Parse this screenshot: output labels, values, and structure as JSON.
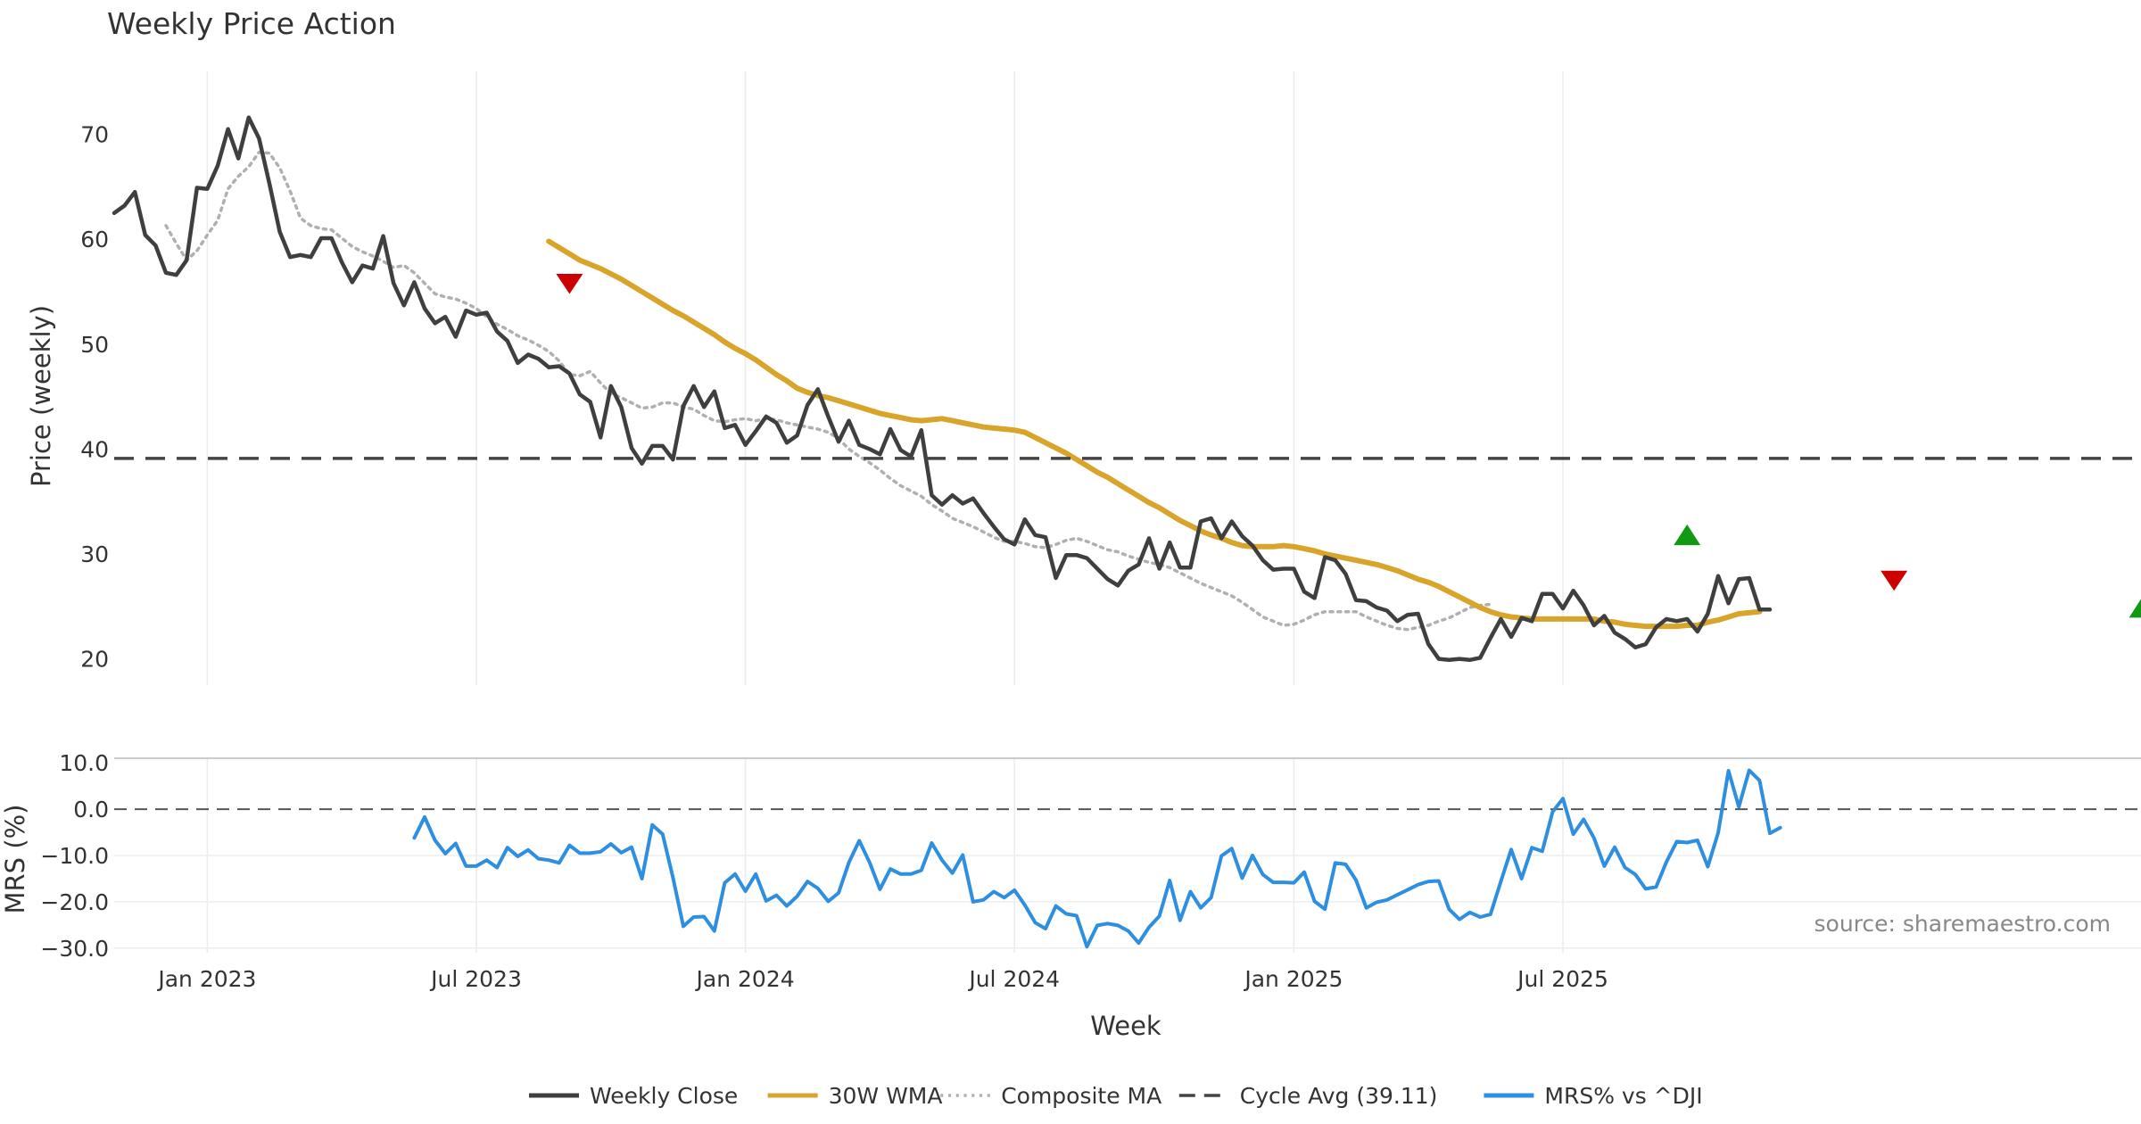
{
  "chart_data": [
    {
      "type": "line",
      "panel": "price",
      "title": "Weekly Price Action",
      "xlabel": "",
      "ylabel": "Price (weekly)",
      "x_start": "2022-10-31",
      "x_step_days": 7,
      "ylim": [
        17.5,
        76
      ],
      "yticks": [
        20,
        30,
        40,
        50,
        60,
        70
      ],
      "grid": true,
      "series": [
        {
          "name": "Weekly Close",
          "color": "#3f3f3f",
          "style": "solid",
          "start_index": 0,
          "values": [
            62.5,
            63.2,
            64.5,
            60.4,
            59.4,
            56.8,
            56.6,
            58.0,
            64.9,
            64.8,
            67.0,
            70.5,
            67.7,
            71.6,
            69.6,
            65.3,
            60.7,
            58.3,
            58.5,
            58.3,
            60.1,
            60.1,
            57.8,
            55.9,
            57.5,
            57.2,
            60.3,
            55.8,
            53.7,
            55.9,
            53.4,
            52.0,
            52.6,
            50.7,
            53.2,
            52.8,
            53.0,
            51.2,
            50.3,
            48.2,
            49.0,
            48.6,
            47.8,
            47.9,
            47.2,
            45.2,
            44.5,
            41.1,
            46.0,
            44.0,
            40.1,
            38.6,
            40.3,
            40.3,
            39.0,
            44.1,
            46.0,
            44.0,
            45.5,
            42.0,
            42.3,
            40.4,
            41.7,
            43.1,
            42.5,
            40.6,
            41.3,
            44.2,
            45.7,
            43.1,
            40.7,
            42.7,
            40.4,
            40.0,
            39.5,
            41.9,
            39.9,
            39.3,
            41.8,
            35.6,
            34.7,
            35.6,
            34.8,
            35.3,
            33.9,
            32.6,
            31.4,
            30.9,
            33.3,
            31.8,
            31.6,
            27.7,
            29.9,
            29.9,
            29.6,
            28.6,
            27.6,
            27.0,
            28.4,
            29.0,
            31.5,
            28.6,
            31.1,
            28.7,
            28.7,
            33.1,
            33.4,
            31.5,
            33.1,
            31.7,
            30.8,
            29.4,
            28.5,
            28.6,
            28.6,
            26.4,
            25.8,
            29.7,
            29.4,
            28.1,
            25.6,
            25.5,
            24.9,
            24.6,
            23.6,
            24.2,
            24.3,
            21.4,
            20.0,
            19.9,
            20.0,
            19.9,
            20.1,
            22.0,
            23.8,
            22.1,
            23.9,
            23.6,
            26.2,
            26.2,
            24.8,
            26.5,
            25.1,
            23.2,
            24.1,
            22.5,
            21.9,
            21.1,
            21.4,
            23.0,
            23.8,
            23.6,
            23.8,
            22.6,
            24.3,
            27.9,
            25.3,
            27.6,
            27.7,
            24.7,
            24.7
          ]
        },
        {
          "name": "30W WMA",
          "color": "#d9a42a",
          "style": "solid",
          "start_index": 42,
          "values": [
            59.8,
            59.2,
            58.6,
            58.0,
            57.6,
            57.2,
            56.7,
            56.2,
            55.6,
            55.0,
            54.4,
            53.8,
            53.2,
            52.7,
            52.1,
            51.5,
            50.9,
            50.2,
            49.6,
            49.1,
            48.5,
            47.8,
            47.1,
            46.5,
            45.8,
            45.4,
            45.1,
            44.9,
            44.6,
            44.3,
            44.0,
            43.7,
            43.4,
            43.2,
            43.0,
            42.8,
            42.7,
            42.8,
            42.9,
            42.7,
            42.5,
            42.3,
            42.1,
            42.0,
            41.9,
            41.8,
            41.6,
            41.1,
            40.6,
            40.1,
            39.6,
            39.0,
            38.4,
            37.8,
            37.3,
            36.7,
            36.1,
            35.5,
            34.9,
            34.4,
            33.8,
            33.2,
            32.7,
            32.2,
            31.8,
            31.5,
            31.1,
            30.8,
            30.7,
            30.7,
            30.7,
            30.8,
            30.7,
            30.5,
            30.3,
            30.0,
            29.8,
            29.6,
            29.4,
            29.2,
            29.0,
            28.7,
            28.4,
            28.0,
            27.6,
            27.3,
            26.9,
            26.4,
            25.9,
            25.4,
            24.9,
            24.5,
            24.2,
            24.0,
            23.9,
            23.8,
            23.8,
            23.8,
            23.8,
            23.8,
            23.8,
            23.8,
            23.6,
            23.5,
            23.3,
            23.2,
            23.1,
            23.1,
            23.1,
            23.1,
            23.2,
            23.2,
            23.5,
            23.7,
            24.0,
            24.3,
            24.4,
            24.5
          ]
        },
        {
          "name": "Composite MA",
          "color": "#b0b0b0",
          "style": "dotted",
          "start_index": 5,
          "values": [
            61.3,
            59.6,
            58.0,
            58.9,
            60.4,
            61.8,
            64.8,
            66.0,
            66.9,
            68.3,
            68.2,
            66.8,
            64.6,
            62.0,
            61.3,
            61.0,
            60.9,
            60.1,
            59.3,
            58.8,
            58.4,
            57.9,
            57.3,
            57.5,
            56.8,
            55.8,
            54.8,
            54.5,
            54.3,
            53.9,
            53.4,
            52.6,
            51.9,
            51.4,
            50.8,
            50.4,
            49.9,
            49.3,
            48.4,
            47.1,
            47.0,
            47.4,
            46.3,
            45.3,
            44.9,
            44.4,
            43.9,
            44.0,
            44.4,
            44.4,
            44.0,
            43.8,
            43.2,
            42.7,
            42.6,
            42.8,
            42.9,
            42.7,
            42.9,
            42.8,
            42.5,
            42.3,
            42.1,
            41.9,
            41.6,
            41.0,
            40.0,
            39.3,
            38.7,
            38.0,
            37.2,
            36.5,
            36.0,
            35.5,
            34.7,
            34.1,
            33.4,
            33.0,
            32.6,
            32.1,
            31.6,
            31.2,
            31.2,
            31.0,
            30.7,
            30.6,
            30.9,
            31.3,
            31.5,
            31.2,
            30.8,
            30.4,
            30.2,
            29.8,
            29.5,
            29.2,
            29.0,
            28.7,
            28.2,
            27.7,
            27.2,
            26.8,
            26.4,
            26.0,
            25.4,
            24.7,
            24.0,
            23.6,
            23.2,
            23.3,
            23.7,
            24.2,
            24.5,
            24.5,
            24.5,
            24.5,
            24.0,
            23.6,
            23.2,
            22.9,
            22.8,
            23.0,
            23.2,
            23.6,
            23.9,
            24.4,
            24.9,
            25.1,
            25.2
          ]
        }
      ],
      "hlines": [
        {
          "name": "Cycle Avg (39.11)",
          "value": 39.11,
          "color": "#444444",
          "style": "dashed"
        }
      ],
      "markers": [
        {
          "type": "sell",
          "index": 44,
          "value": 56.0,
          "color": "#cc0000"
        },
        {
          "type": "buy",
          "index": 152,
          "value": 31.6,
          "color": "#119911"
        },
        {
          "type": "sell",
          "index": 172,
          "value": 27.7,
          "color": "#cc0000"
        },
        {
          "type": "buy",
          "index": 196,
          "value": 24.7,
          "color": "#119911"
        }
      ],
      "annotations": [
        "source: sharemaestro.com"
      ]
    },
    {
      "type": "line",
      "panel": "mrs",
      "xlabel": "Week",
      "ylabel": "MRS (%)",
      "ylim": [
        -31,
        11
      ],
      "yticks": [
        10.0,
        0.0,
        -10.0,
        -20.0,
        -30.0
      ],
      "ytick_labels": [
        "10.0",
        "0.0",
        "−10.0",
        "−20.0",
        "−30.0"
      ],
      "xtick_labels": [
        "Jan 2023",
        "Jul 2023",
        "Jan 2024",
        "Jul 2024",
        "Jan 2025",
        "Jul 2025"
      ],
      "xtick_dates": [
        "2023-01-02",
        "2023-07-03",
        "2024-01-01",
        "2024-07-01",
        "2025-01-06",
        "2025-07-07"
      ],
      "series": [
        {
          "name": "MRS% vs ^DJI",
          "color": "#2e8fe0",
          "style": "solid",
          "start_index": 29,
          "values": [
            -6.2,
            -1.7,
            -6.7,
            -9.6,
            -7.4,
            -12.3,
            -12.3,
            -11.0,
            -12.6,
            -8.3,
            -10.2,
            -8.8,
            -10.7,
            -11.0,
            -11.6,
            -7.8,
            -9.5,
            -9.5,
            -9.2,
            -7.5,
            -9.4,
            -8.2,
            -15.0,
            -3.4,
            -5.4,
            -14.8,
            -25.3,
            -23.3,
            -23.2,
            -26.3,
            -15.9,
            -14.0,
            -17.7,
            -14.0,
            -19.8,
            -18.6,
            -20.9,
            -18.8,
            -15.6,
            -17.1,
            -19.9,
            -18.1,
            -11.5,
            -6.8,
            -11.5,
            -17.3,
            -12.9,
            -14.0,
            -14.0,
            -13.2,
            -7.3,
            -11.0,
            -13.8,
            -9.9,
            -20.0,
            -19.6,
            -17.8,
            -19.1,
            -17.5,
            -20.7,
            -24.5,
            -25.8,
            -20.9,
            -22.6,
            -23.0,
            -29.7,
            -25.1,
            -24.7,
            -25.1,
            -26.3,
            -28.9,
            -25.5,
            -23.1,
            -15.4,
            -24.0,
            -17.8,
            -21.3,
            -19.1,
            -10.1,
            -8.5,
            -14.9,
            -10.0,
            -14.1,
            -15.8,
            -15.8,
            -15.9,
            -13.6,
            -19.9,
            -21.6,
            -11.6,
            -11.9,
            -15.3,
            -21.3,
            -20.1,
            -19.6,
            -18.5,
            -17.4,
            -16.3,
            -15.6,
            -15.5,
            -21.6,
            -23.8,
            -22.3,
            -23.3,
            -22.7,
            -15.6,
            -8.7,
            -15.0,
            -8.3,
            -9.1,
            -0.6,
            2.3,
            -5.4,
            -2.2,
            -6.2,
            -12.3,
            -8.2,
            -12.6,
            -14.1,
            -17.2,
            -16.8,
            -11.4,
            -7.0,
            -7.2,
            -6.7,
            -12.4,
            -5.1,
            8.3,
            0.5,
            8.4,
            6.2,
            -5.2,
            -4.0
          ]
        }
      ],
      "hlines": [
        {
          "name": "zero",
          "value": 0,
          "color": "#555555",
          "style": "dashed"
        }
      ]
    }
  ],
  "legend": {
    "placement": "bottom-center",
    "items": [
      {
        "label": "Weekly Close",
        "color": "#3f3f3f",
        "style": "solid"
      },
      {
        "label": "30W WMA",
        "color": "#d9a42a",
        "style": "solid"
      },
      {
        "label": "Composite MA",
        "color": "#b0b0b0",
        "style": "dotted"
      },
      {
        "label": "Cycle Avg (39.11)",
        "color": "#444444",
        "style": "dashed"
      },
      {
        "label": "MRS% vs ^DJI",
        "color": "#2e8fe0",
        "style": "solid"
      }
    ]
  }
}
